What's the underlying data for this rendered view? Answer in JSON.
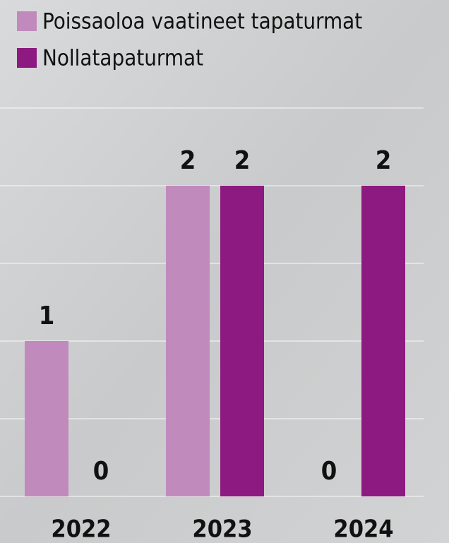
{
  "chart_data": {
    "type": "bar",
    "categories": [
      "2022",
      "2023",
      "2024"
    ],
    "series": [
      {
        "name": "Poissaoloa vaatineet tapaturmat",
        "color": "#c18abd",
        "values": [
          1,
          2,
          0
        ]
      },
      {
        "name": "Nollatapaturmat",
        "color": "#8d1a80",
        "values": [
          0,
          2,
          2
        ]
      }
    ],
    "ylim": [
      0,
      2.5
    ],
    "yticks": [
      0,
      0.5,
      1,
      1.5,
      2,
      2.5
    ],
    "grid": true
  }
}
